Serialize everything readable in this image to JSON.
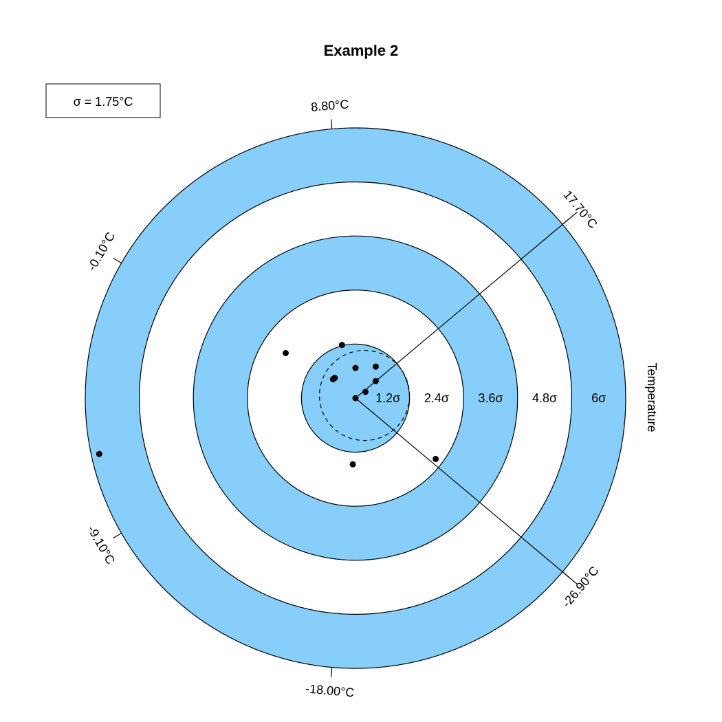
{
  "chart_data": {
    "type": "scatter",
    "title": "Example 2",
    "legend": {
      "text": "σ = 1.75°C",
      "placement": "top-left"
    },
    "axis_label": "Temperature",
    "ring_labels": [
      "1.2σ",
      "2.4σ",
      "3.6σ",
      "4.8σ",
      "6σ"
    ],
    "ring_radii_sigma": [
      1.2,
      2.4,
      3.6,
      4.8,
      6
    ],
    "ring_fill_colors": [
      "#87CEFA",
      "#ffffff",
      "#87CEFA",
      "#ffffff",
      "#87CEFA"
    ],
    "dashed_circle_sigma": 1.0,
    "tick_labels": [
      {
        "text": "8.80°C",
        "angle_deg": 95
      },
      {
        "text": "17.70°C",
        "angle_deg": 40
      },
      {
        "text": "-26.90°C",
        "angle_deg": -40
      },
      {
        "text": "-18.00°C",
        "angle_deg": -95
      },
      {
        "text": "-9.10°C",
        "angle_deg": -150
      },
      {
        "text": "-0.10°C",
        "angle_deg": 150
      }
    ],
    "spokes_angle_deg": [
      40,
      -40
    ],
    "points_sigma": [
      {
        "x": 0.0,
        "y": 0.0
      },
      {
        "x": 0.22,
        "y": 0.14
      },
      {
        "x": 0.45,
        "y": 0.38
      },
      {
        "x": 0.45,
        "y": 0.7
      },
      {
        "x": 0.0,
        "y": 0.67
      },
      {
        "x": -0.5,
        "y": 0.42
      },
      {
        "x": -0.46,
        "y": 0.45
      },
      {
        "x": -0.3,
        "y": 1.18
      },
      {
        "x": -1.55,
        "y": 1.0
      },
      {
        "x": -0.06,
        "y": -1.47
      },
      {
        "x": 1.78,
        "y": -1.35
      },
      {
        "x": -5.69,
        "y": -1.24
      }
    ]
  }
}
